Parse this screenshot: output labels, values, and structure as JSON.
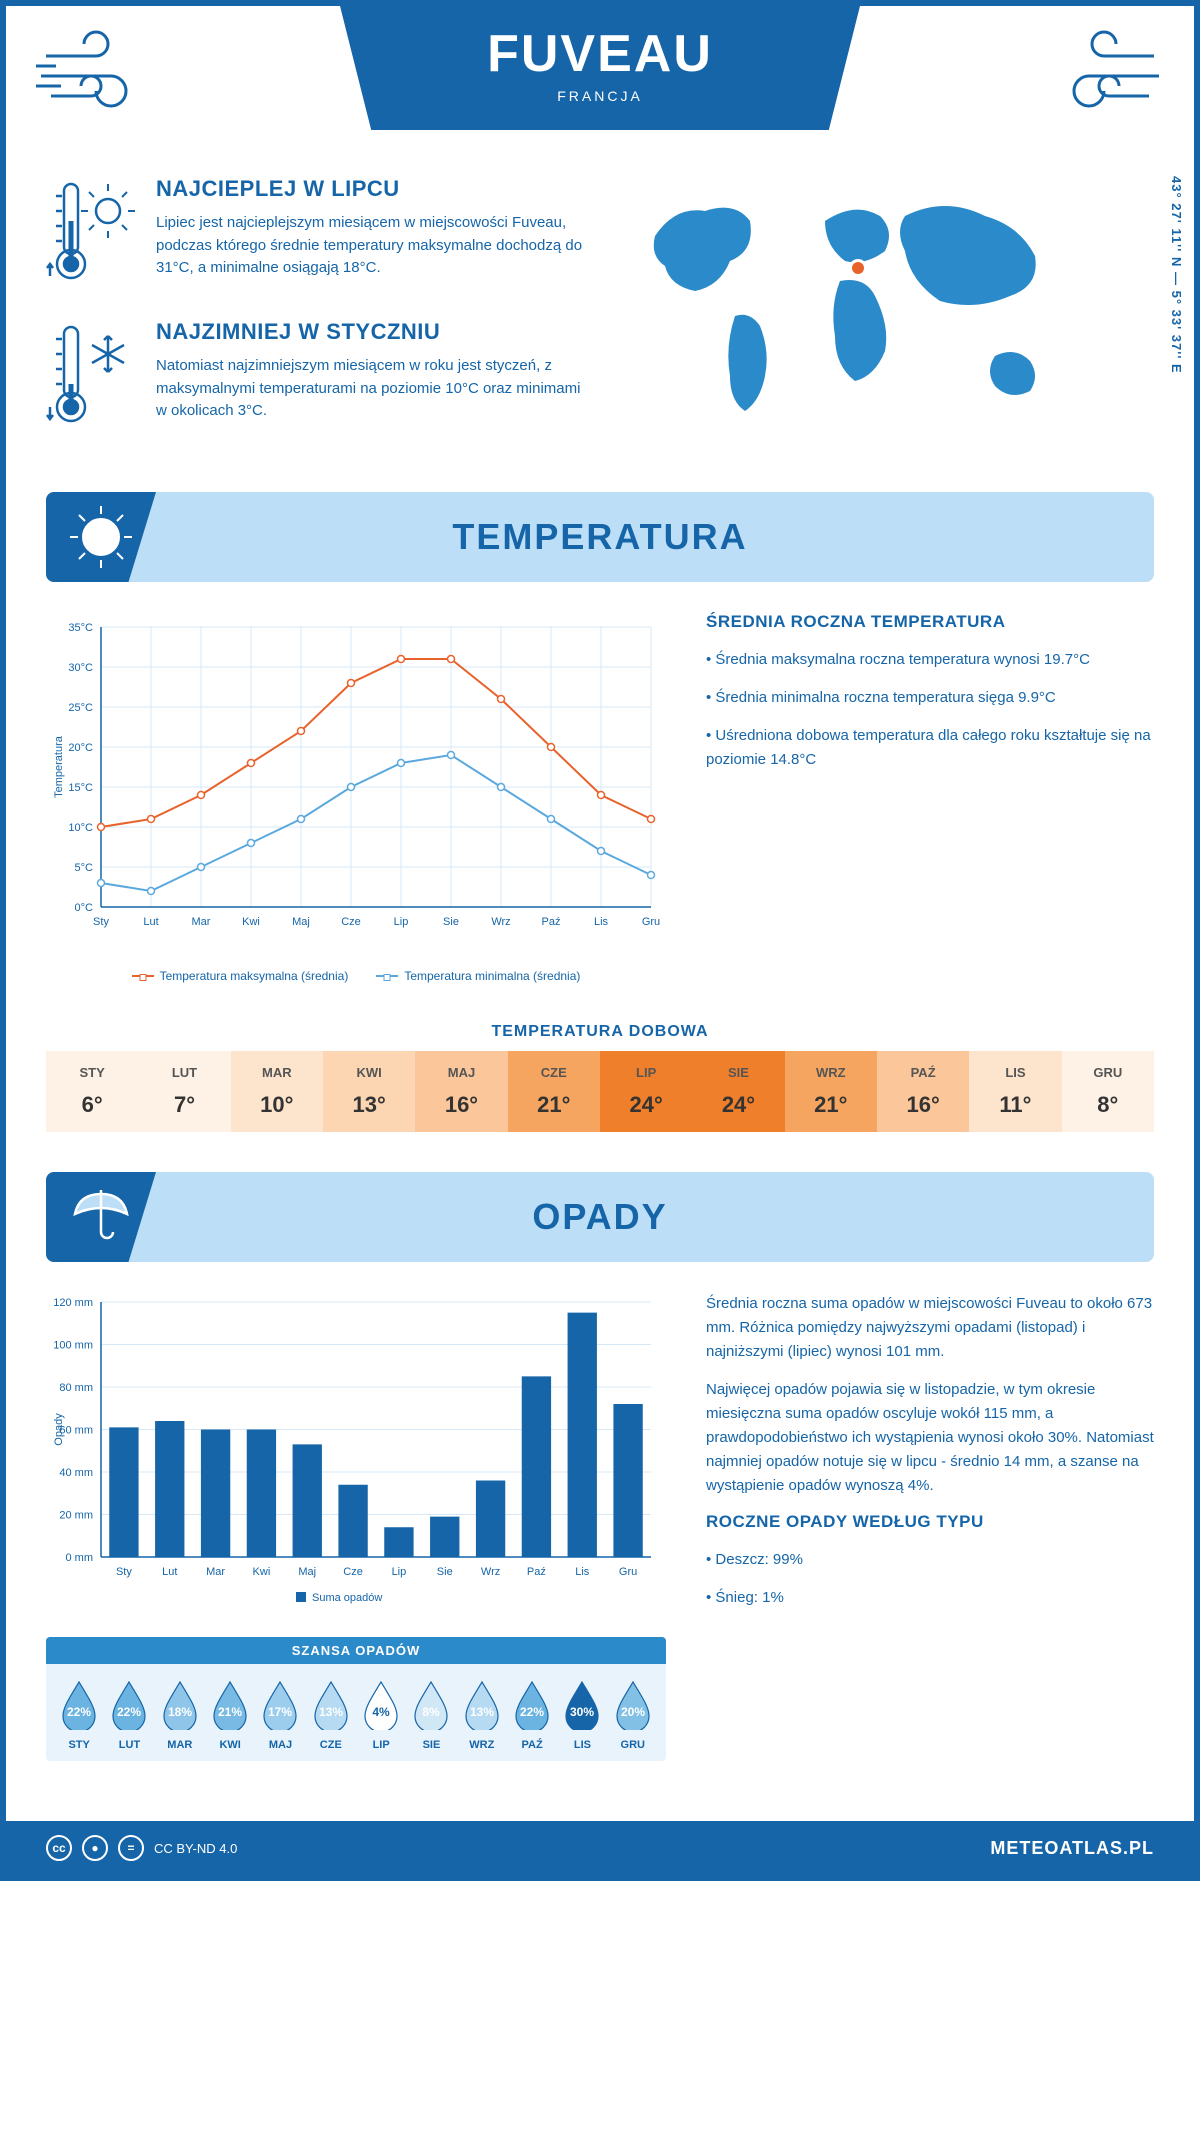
{
  "header": {
    "title": "FUVEAU",
    "country": "FRANCJA"
  },
  "coords": "43° 27' 11'' N — 5° 33' 37'' E",
  "facts": {
    "hot": {
      "title": "NAJCIEPLEJ W LIPCU",
      "body": "Lipiec jest najcieplejszym miesiącem w miejscowości Fuveau, podczas którego średnie temperatury maksymalne dochodzą do 31°C, a minimalne osiągają 18°C."
    },
    "cold": {
      "title": "NAJZIMNIEJ W STYCZNIU",
      "body": "Natomiast najzimniejszym miesiącem w roku jest styczeń, z maksymalnymi temperaturami na poziomie 10°C oraz minimami w okolicach 3°C."
    }
  },
  "sections": {
    "temp": "TEMPERATURA",
    "precip": "OPADY"
  },
  "temp_chart": {
    "type": "line",
    "ylabel": "Temperatura",
    "months": [
      "Sty",
      "Lut",
      "Mar",
      "Kwi",
      "Maj",
      "Cze",
      "Lip",
      "Sie",
      "Wrz",
      "Paź",
      "Lis",
      "Gru"
    ],
    "ylim": [
      0,
      35
    ],
    "ytick_step": 5,
    "yunit": "°C",
    "series": [
      {
        "name": "Temperatura maksymalna (średnia)",
        "color": "#e8622c",
        "values": [
          10,
          11,
          14,
          18,
          22,
          28,
          31,
          31,
          26,
          20,
          14,
          11
        ]
      },
      {
        "name": "Temperatura minimalna (średnia)",
        "color": "#5aa8de",
        "values": [
          3,
          2,
          5,
          8,
          11,
          15,
          18,
          19,
          15,
          11,
          7,
          4
        ]
      }
    ],
    "grid_color": "#d6e8f5",
    "axis_color": "#1565a8",
    "bg": "#ffffff"
  },
  "temp_text": {
    "heading": "ŚREDNIA ROCZNA TEMPERATURA",
    "bullets": [
      "Średnia maksymalna roczna temperatura wynosi 19.7°C",
      "Średnia minimalna roczna temperatura sięga 9.9°C",
      "Uśredniona dobowa temperatura dla całego roku kształtuje się na poziomie 14.8°C"
    ]
  },
  "daily_temp": {
    "title": "TEMPERATURA DOBOWA",
    "months": [
      "STY",
      "LUT",
      "MAR",
      "KWI",
      "MAJ",
      "CZE",
      "LIP",
      "SIE",
      "WRZ",
      "PAŹ",
      "LIS",
      "GRU"
    ],
    "values": [
      "6°",
      "7°",
      "10°",
      "13°",
      "16°",
      "21°",
      "24°",
      "24°",
      "21°",
      "16°",
      "11°",
      "8°"
    ],
    "colors": [
      "#fef2e6",
      "#fef2e6",
      "#fde4cd",
      "#fcd5b3",
      "#fbc79a",
      "#f5a55f",
      "#ef7f2a",
      "#ef7f2a",
      "#f5a55f",
      "#fbc79a",
      "#fde4cd",
      "#fef2e6"
    ]
  },
  "precip_chart": {
    "type": "bar",
    "ylabel": "Opady",
    "legend": "Suma opadów",
    "months": [
      "Sty",
      "Lut",
      "Mar",
      "Kwi",
      "Maj",
      "Cze",
      "Lip",
      "Sie",
      "Wrz",
      "Paź",
      "Lis",
      "Gru"
    ],
    "ylim": [
      0,
      120
    ],
    "ytick_step": 20,
    "yunit": " mm",
    "values": [
      61,
      64,
      60,
      60,
      53,
      34,
      14,
      19,
      36,
      85,
      115,
      72
    ],
    "bar_color": "#1565a8",
    "grid_color": "#d6e8f5",
    "axis_color": "#1565a8"
  },
  "precip_text": {
    "paragraphs": [
      "Średnia roczna suma opadów w miejscowości Fuveau to około 673 mm. Różnica pomiędzy najwyższymi opadami (listopad) i najniższymi (lipiec) wynosi 101 mm.",
      "Najwięcej opadów pojawia się w listopadzie, w tym okresie miesięczna suma opadów oscyluje wokół 115 mm, a prawdopodobieństwo ich wystąpienia wynosi około 30%. Natomiast najmniej opadów notuje się w lipcu - średnio 14 mm, a szanse na wystąpienie opadów wynoszą 4%."
    ],
    "type_heading": "ROCZNE OPADY WEDŁUG TYPU",
    "type_bullets": [
      "Deszcz: 99%",
      "Śnieg: 1%"
    ]
  },
  "precip_chance": {
    "title": "SZANSA OPADÓW",
    "months": [
      "STY",
      "LUT",
      "MAR",
      "KWI",
      "MAJ",
      "CZE",
      "LIP",
      "SIE",
      "WRZ",
      "PAŹ",
      "LIS",
      "GRU"
    ],
    "values": [
      "22%",
      "22%",
      "18%",
      "21%",
      "17%",
      "13%",
      "4%",
      "8%",
      "13%",
      "22%",
      "30%",
      "20%"
    ],
    "fills": [
      "#6bb3e0",
      "#6bb3e0",
      "#8fc5e8",
      "#78bae3",
      "#9ccded",
      "#b6daf1",
      "#ffffff",
      "#d0e7f6",
      "#b6daf1",
      "#6bb3e0",
      "#1565a8",
      "#82c0e6"
    ],
    "text_colors": [
      "#fff",
      "#fff",
      "#fff",
      "#fff",
      "#fff",
      "#fff",
      "#1565a8",
      "#fff",
      "#fff",
      "#fff",
      "#fff",
      "#fff"
    ]
  },
  "footer": {
    "license": "CC BY-ND 4.0",
    "site": "METEOATLAS.PL"
  }
}
